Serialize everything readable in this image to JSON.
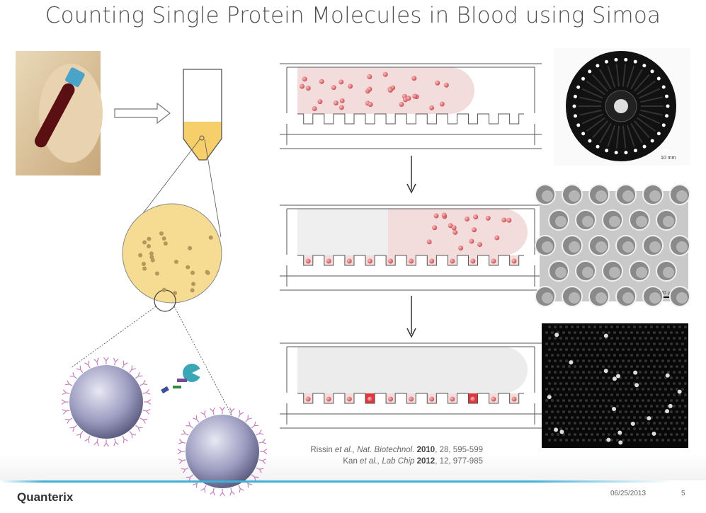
{
  "slide": {
    "title": "Counting  Single Protein Molecules in Blood using Simoa",
    "references": [
      {
        "authors": "Rissin",
        "etal": " et al., Nat. Biotechnol.",
        "year": "2010",
        "rest": ", 28, 595-599"
      },
      {
        "authors": "Kan",
        "etal": " et al., Lab Chip",
        "year": "2012",
        "rest": ", 12, 977-985"
      }
    ],
    "images": {
      "disk_scale": "10 mm",
      "sem_scale": "30 µm"
    },
    "footer": {
      "logo": "Quanterix",
      "date": "06/25/2013",
      "page_number": "5",
      "accent_color": "#3fb0d8"
    },
    "colors": {
      "plasma": "#f6dc93",
      "bead": "#e07a7a",
      "fluid": "#f3dcdc",
      "active_well": "#e8323c"
    }
  }
}
